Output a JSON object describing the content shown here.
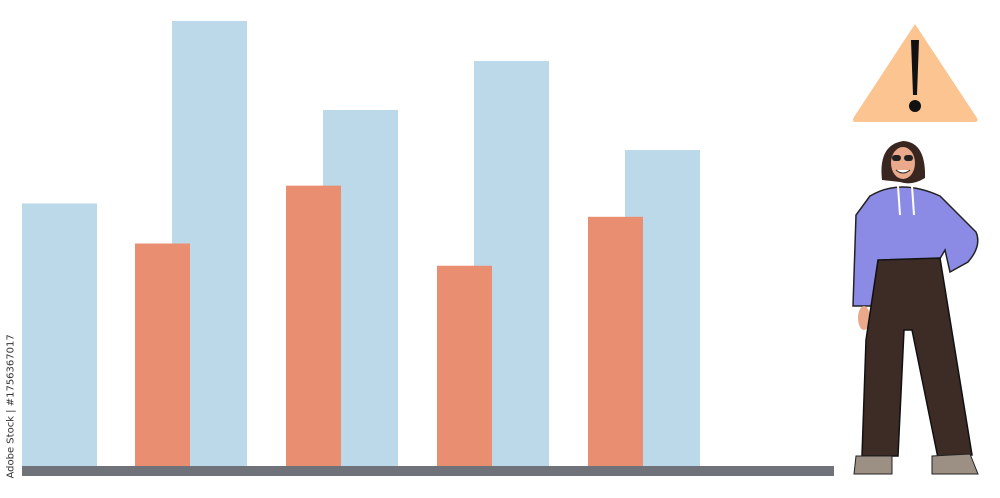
{
  "chart_data": {
    "type": "bar",
    "title": "",
    "xlabel": "",
    "ylabel": "",
    "ylim": [
      0,
      100
    ],
    "grid": false,
    "legend": "none",
    "series": [
      {
        "color": "#bcd9e9",
        "values": [
          59,
          100,
          80,
          91,
          71
        ]
      },
      {
        "color": "#e98e70",
        "values": [
          null,
          50,
          63,
          45,
          56
        ]
      }
    ],
    "axis_color": "#707279"
  },
  "illustration": {
    "warning_icon": "warning-triangle-icon",
    "warning_color": "#fbc490",
    "person": "person-standing"
  },
  "watermark": "Adobe Stock | #1756367017"
}
